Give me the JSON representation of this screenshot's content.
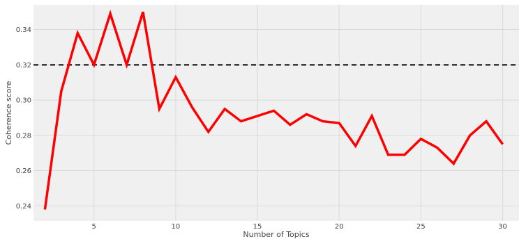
{
  "chart_data": {
    "type": "line",
    "xlabel": "Number of Topics",
    "ylabel": "Coherence score",
    "xlim": [
      1.3,
      31.0
    ],
    "ylim": [
      0.2315,
      0.354
    ],
    "xticks": [
      5,
      10,
      15,
      20,
      25,
      30
    ],
    "yticks": [
      0.24,
      0.26,
      0.28,
      0.3,
      0.32,
      0.34
    ],
    "ytick_labels": [
      "0.24",
      "0.26",
      "0.28",
      "0.30",
      "0.32",
      "0.34"
    ],
    "grid": true,
    "series": [
      {
        "color": "#ff0000",
        "x": [
          2,
          3,
          4,
          5,
          6,
          7,
          8,
          9,
          10,
          11,
          12,
          13,
          14,
          15,
          16,
          17,
          18,
          19,
          20,
          21,
          22,
          23,
          24,
          25,
          26,
          27,
          28,
          29,
          30
        ],
        "y": [
          0.238,
          0.305,
          0.338,
          0.32,
          0.349,
          0.32,
          0.35,
          0.295,
          0.313,
          0.296,
          0.282,
          0.295,
          0.288,
          0.291,
          0.294,
          0.286,
          0.292,
          0.288,
          0.287,
          0.274,
          0.291,
          0.269,
          0.269,
          0.278,
          0.273,
          0.264,
          0.28,
          0.288,
          0.275
        ]
      }
    ],
    "reference_line": {
      "y": 0.32,
      "style": "dashed",
      "color": "#000000"
    },
    "plot_background": "#f0f0f0",
    "grid_color": "#d9d9d9"
  }
}
